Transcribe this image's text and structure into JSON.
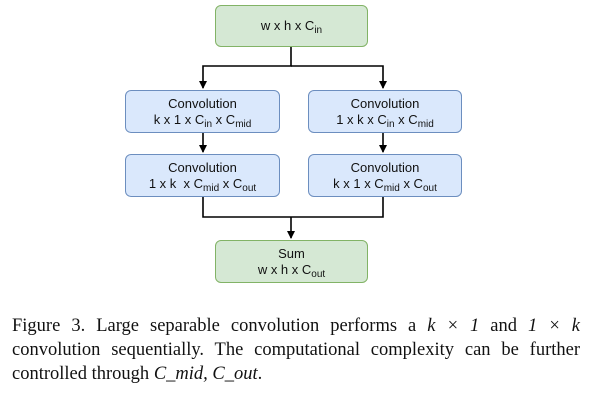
{
  "diagram": {
    "input": {
      "base": "w x h x C",
      "sub": "in"
    },
    "left_conv1": {
      "title": "Convolution",
      "base": "k x 1 x C",
      "sub1": "in",
      "mid": " x C",
      "sub2": "mid"
    },
    "right_conv1": {
      "title": "Convolution",
      "base": "1 x k x C",
      "sub1": "in",
      "mid": " x C",
      "sub2": "mid"
    },
    "left_conv2": {
      "title": "Convolution",
      "base": "1 x k  x C",
      "sub1": "mid",
      "mid": " x C",
      "sub2": "out"
    },
    "right_conv2": {
      "title": "Convolution",
      "base": "k x 1 x C",
      "sub1": "mid",
      "mid": " x C",
      "sub2": "out"
    },
    "sum": {
      "title": "Sum",
      "base": "w x h x C",
      "sub": "out"
    }
  },
  "caption": {
    "part1": "Figure 3. Large separable convolution performs a ",
    "m1": "k × 1",
    "part2": " and ",
    "m2": "1 × k",
    "part3": " convolution sequentially.  The computational complexity can be further controlled through ",
    "m3": "C_mid, C_out",
    "part4": "."
  }
}
